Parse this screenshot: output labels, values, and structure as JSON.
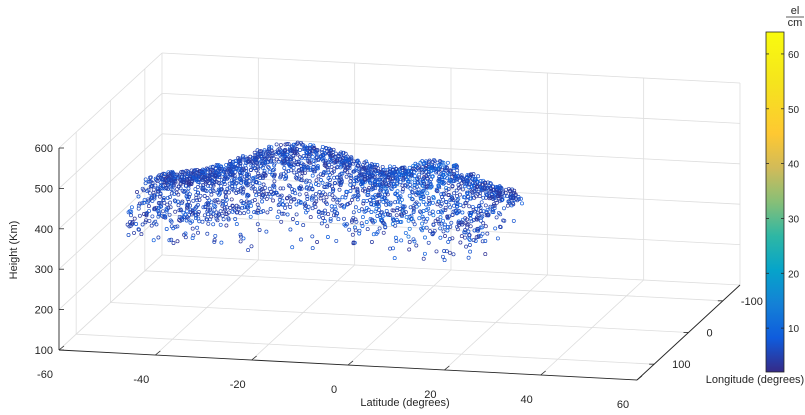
{
  "chart_data": {
    "type": "scatter",
    "title": "",
    "xlabel": "Latitude (degrees)",
    "ylabel": "Longitude (degrees)",
    "zlabel": "Height (Km)",
    "x_ticks": [
      "-60",
      "-40",
      "-20",
      "0",
      "20",
      "40",
      "60"
    ],
    "y_ticks": [
      "-100",
      "0",
      "100"
    ],
    "z_ticks": [
      "100",
      "200",
      "300",
      "400",
      "500",
      "600"
    ],
    "xlim": [
      -60,
      60
    ],
    "ylim": [
      -150,
      150
    ],
    "zlim": [
      100,
      600
    ],
    "grid": true,
    "colorbar": {
      "unit_numerator": "el",
      "unit_denominator": "cm",
      "ticks": [
        "10",
        "20",
        "30",
        "40",
        "50",
        "60"
      ],
      "range": [
        2,
        64
      ],
      "colormap": "parula"
    },
    "series": [
      {
        "marker": "open-circle",
        "value_range": [
          3,
          12
        ],
        "x_range": [
          -52,
          22
        ],
        "y_range": [
          -60,
          70
        ],
        "z_range": [
          300,
          560
        ]
      }
    ]
  }
}
